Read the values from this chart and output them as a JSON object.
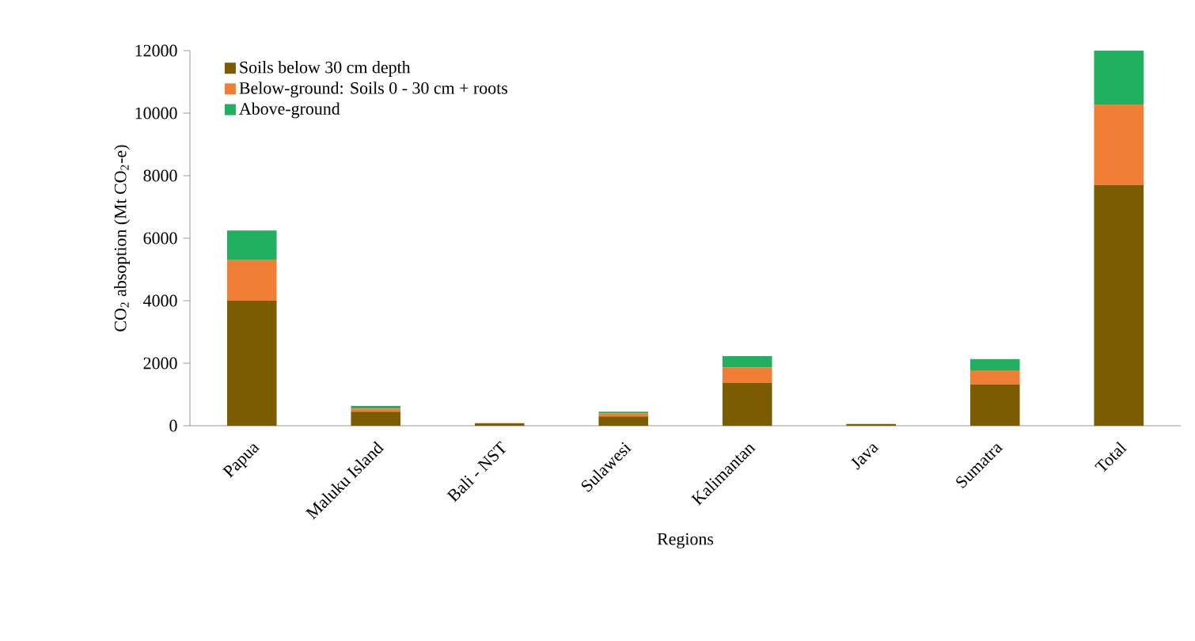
{
  "chart_data": {
    "type": "bar",
    "stacked": true,
    "xlabel": "Regions",
    "ylabel": "CO$_{2}$ absoption (Mt CO$_{2}$-e)",
    "categories": [
      "Papua",
      "Maluku Island",
      "Bali - NST",
      "Sulawesi",
      "Kalimantan",
      "Java",
      "Sumatra",
      "Total"
    ],
    "series": [
      {
        "name": "Soils below 30 cm depth",
        "color": "#7b5c00",
        "values": [
          4000,
          450,
          80,
          300,
          1370,
          60,
          1320,
          7700
        ]
      },
      {
        "name": "Below-ground: Soils 0 - 30 cm + roots",
        "color": "#f07f35",
        "values": [
          1300,
          100,
          null,
          100,
          500,
          null,
          450,
          2580
        ]
      },
      {
        "name": "Above-ground",
        "color": "#20b060",
        "values": [
          950,
          80,
          null,
          50,
          360,
          null,
          360,
          1720
        ]
      }
    ],
    "ylim": [
      0,
      12000
    ],
    "yticks": [
      0,
      2000,
      4000,
      6000,
      8000,
      10000,
      12000
    ],
    "legend": "top left"
  }
}
